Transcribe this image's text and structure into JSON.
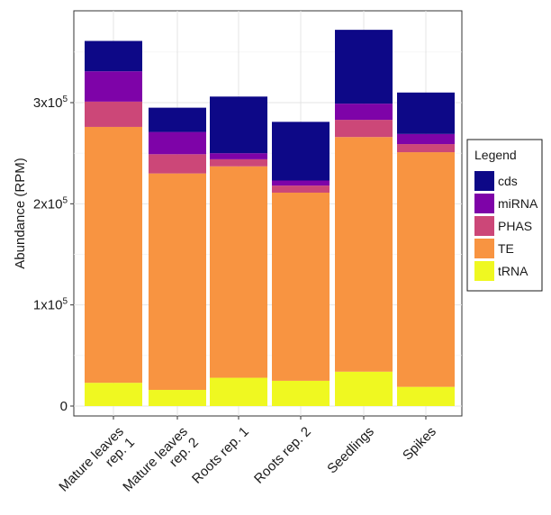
{
  "chart_data": {
    "type": "bar",
    "stacked": true,
    "categories": [
      "Mature leaves rep. 1",
      "Mature leaves rep. 2",
      "Roots rep. 1",
      "Roots rep. 2",
      "Seedlings",
      "Spikes"
    ],
    "category_label_lines": [
      [
        "Mature leaves",
        "rep. 1"
      ],
      [
        "Mature leaves",
        "rep. 2"
      ],
      [
        "Roots rep. 1"
      ],
      [
        "Roots rep. 2"
      ],
      [
        "Seedlings"
      ],
      [
        "Spikes"
      ]
    ],
    "series": [
      {
        "name": "tRNA",
        "color": "#EFF821",
        "values": [
          23000,
          16000,
          28000,
          25000,
          34000,
          19000
        ]
      },
      {
        "name": "TE",
        "color": "#F89441",
        "values": [
          253000,
          214000,
          209000,
          186000,
          232000,
          232000
        ]
      },
      {
        "name": "PHAS",
        "color": "#CC4778",
        "values": [
          25000,
          19000,
          7000,
          7000,
          17000,
          8000
        ]
      },
      {
        "name": "miRNA",
        "color": "#7E03A8",
        "values": [
          30000,
          22000,
          6000,
          5000,
          16000,
          10000
        ]
      },
      {
        "name": "cds",
        "color": "#0D0887",
        "values": [
          30000,
          24000,
          56000,
          58000,
          73000,
          41000
        ]
      }
    ],
    "ylabel": "Abundance (RPM)",
    "xlabel": "",
    "ylim": [
      0,
      375000
    ],
    "yticks": [
      {
        "value": 0,
        "base": "0",
        "exp": ""
      },
      {
        "value": 100000,
        "base": "1x10",
        "exp": "5"
      },
      {
        "value": 200000,
        "base": "2x10",
        "exp": "5"
      },
      {
        "value": 300000,
        "base": "3x10",
        "exp": "5"
      }
    ],
    "grid": true,
    "legend": {
      "title": "Legend",
      "position": "right",
      "order": [
        "cds",
        "miRNA",
        "PHAS",
        "TE",
        "tRNA"
      ]
    }
  }
}
